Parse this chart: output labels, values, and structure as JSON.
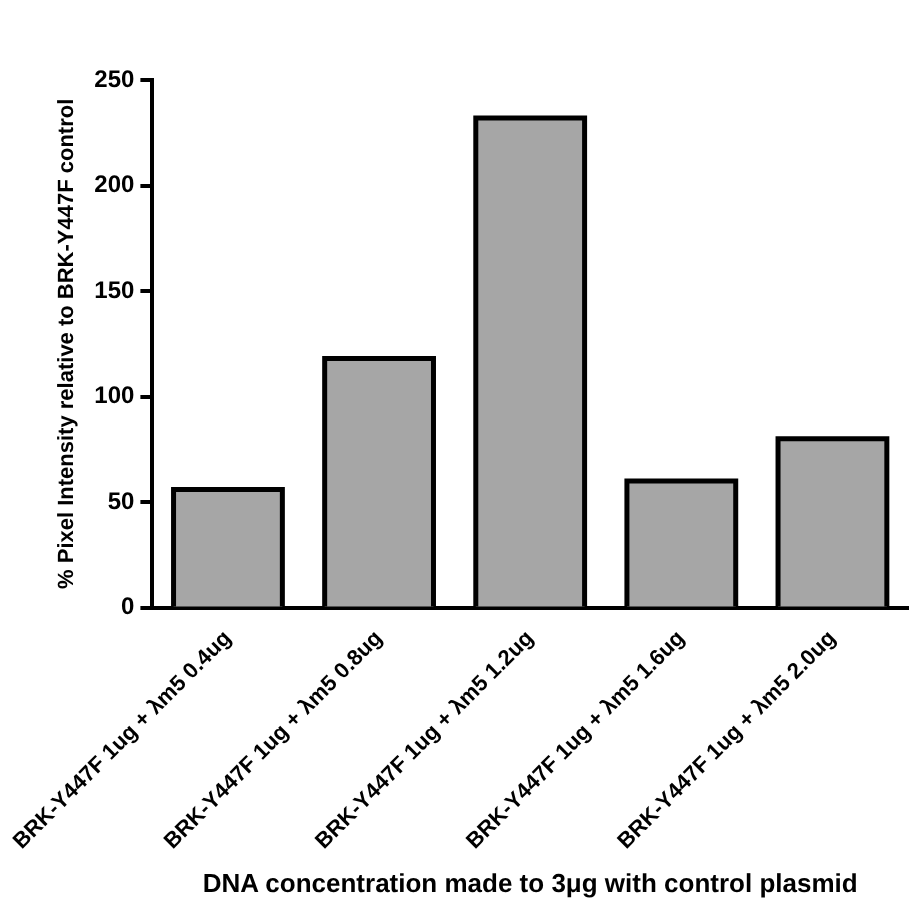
{
  "chart_data": {
    "type": "bar",
    "categories": [
      "BRK-Y447F 1ug + λm5 0.4ug",
      "BRK-Y447F 1ug + λm5 0.8ug",
      "BRK-Y447F 1ug + λm5 1.2ug",
      "BRK-Y447F 1ug + λm5 1.6ug",
      "BRK-Y447F 1ug + λm5 2.0ug"
    ],
    "values": [
      56,
      118,
      232,
      60,
      80
    ],
    "color": "#a6a6a6",
    "xlabel": "DNA concentration made to 3μg with control plasmid",
    "ylabel": "% Pixel Intensity relative to BRK-Y447F control",
    "ylim": [
      0,
      250
    ],
    "yticks": [
      0,
      50,
      100,
      150,
      200,
      250
    ],
    "grid": false,
    "legend": false
  }
}
